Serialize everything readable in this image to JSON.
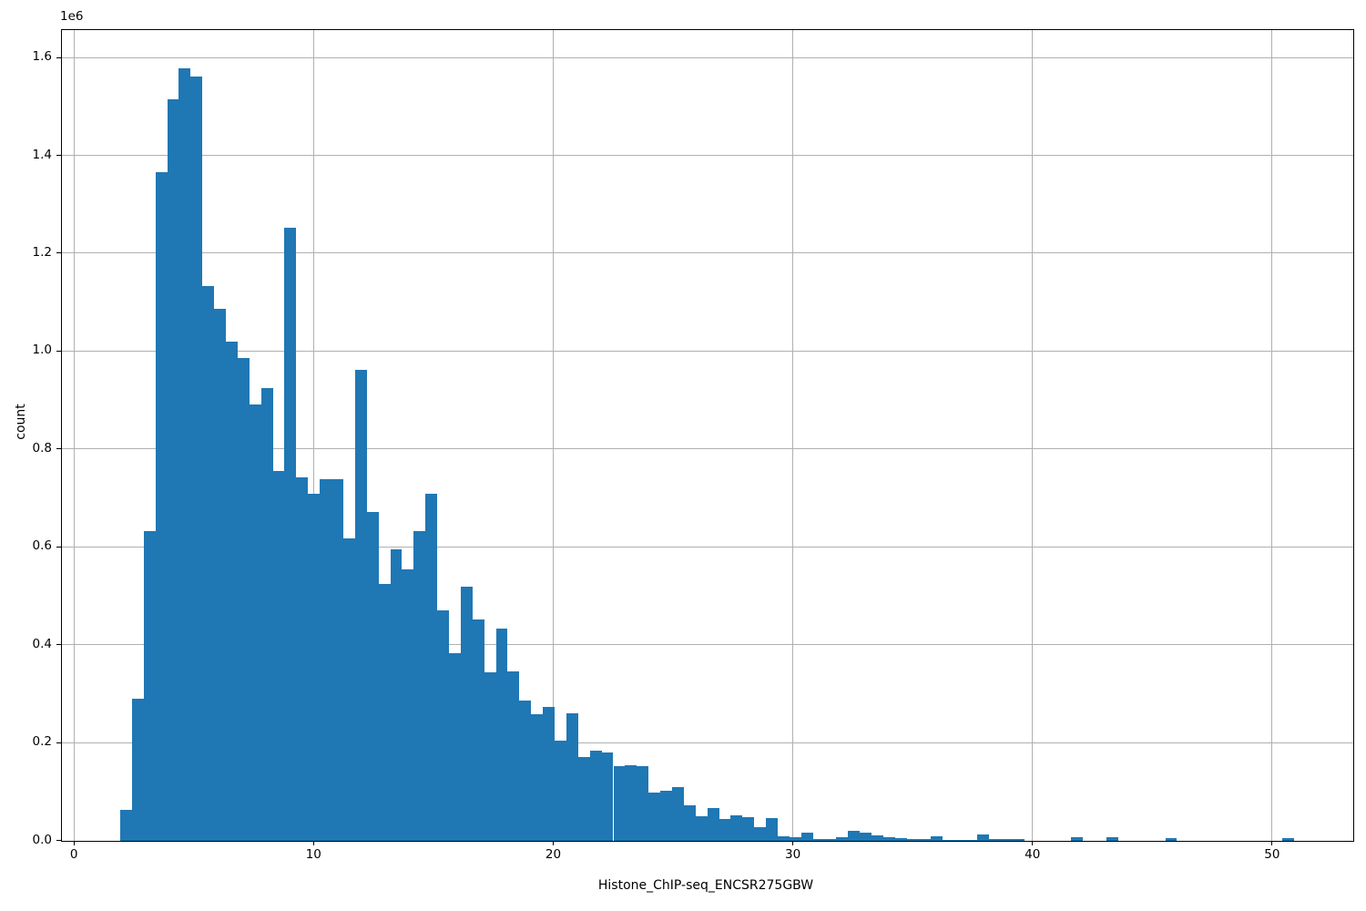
{
  "chart_data": {
    "type": "bar",
    "subtype": "histogram",
    "title": "",
    "xlabel": "Histone_ChIP-seq_ENCSR275GBW",
    "ylabel": "count",
    "offset_text": "1e6",
    "bar_color": "#1f77b4",
    "grid_color": "#b0b0b0",
    "grid": true,
    "xlim": [
      -0.52,
      53.38
    ],
    "ylim": [
      0,
      1657000
    ],
    "bin_start": 1.93,
    "bin_width": 0.49,
    "xticks": {
      "values": [
        0,
        10,
        20,
        30,
        40,
        50
      ],
      "labels": [
        "0",
        "10",
        "20",
        "30",
        "40",
        "50"
      ]
    },
    "yticks": {
      "values": [
        0,
        200000,
        400000,
        600000,
        800000,
        1000000,
        1200000,
        1400000,
        1600000
      ],
      "labels": [
        "0.0",
        "0.2",
        "0.4",
        "0.6",
        "0.8",
        "1.0",
        "1.2",
        "1.4",
        "1.6"
      ]
    },
    "counts": [
      62000,
      290000,
      632000,
      1366000,
      1515000,
      1578000,
      1562000,
      1133000,
      1087000,
      1020000,
      985000,
      890000,
      925000,
      755000,
      1253000,
      742000,
      708000,
      739000,
      739000,
      618000,
      962000,
      671000,
      525000,
      595000,
      553000,
      632000,
      709000,
      470000,
      383000,
      519000,
      452000,
      344000,
      433000,
      346000,
      285000,
      258000,
      272000,
      204000,
      260000,
      170000,
      183000,
      180000,
      152000,
      153000,
      152000,
      97000,
      102000,
      109000,
      71000,
      50000,
      66000,
      44000,
      52000,
      48000,
      27000,
      46000,
      9000,
      6000,
      15000,
      2000,
      2000,
      7400,
      19800,
      15500,
      9900,
      6800,
      4300,
      3100,
      2000,
      8000,
      1000,
      1000,
      1000,
      12000,
      3000,
      2000,
      2000,
      0,
      0,
      0,
      0,
      6000,
      0,
      0,
      7000,
      0,
      0,
      0,
      0,
      5000,
      0,
      0,
      0,
      0,
      0,
      0,
      0,
      0,
      0,
      4000
    ]
  }
}
